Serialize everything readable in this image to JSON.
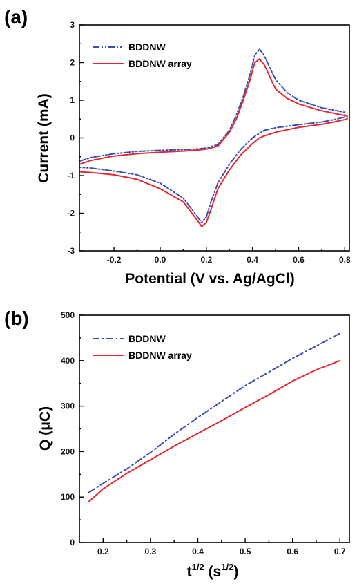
{
  "chart_data": [
    {
      "panel": "(a)",
      "type": "line",
      "xlabel": "Potential (V vs. Ag/AgCl)",
      "ylabel": "Current (mA)",
      "xlim": [
        -0.35,
        0.82
      ],
      "ylim": [
        -3,
        3
      ],
      "xticks": [
        -0.2,
        0.0,
        0.2,
        0.4,
        0.6,
        0.8
      ],
      "xtick_labels": [
        "-0.2",
        "0.0",
        "0.2",
        "0.4",
        "0.6",
        "0.8"
      ],
      "yticks": [
        -3,
        -2,
        -1,
        0,
        1,
        2,
        3
      ],
      "ytick_labels": [
        "-3",
        "-2",
        "-1",
        "0",
        "1",
        "2",
        "3"
      ],
      "grid": false,
      "legend_position": "top-left",
      "series": [
        {
          "name": "BDDNW",
          "color": "#3a4fb0",
          "dash": "dash-dot-dot",
          "x": [
            -0.35,
            -0.3,
            -0.2,
            -0.1,
            0.0,
            0.1,
            0.15,
            0.2,
            0.25,
            0.3,
            0.33,
            0.36,
            0.39,
            0.41,
            0.43,
            0.45,
            0.48,
            0.5,
            0.55,
            0.6,
            0.7,
            0.8,
            0.8,
            0.75,
            0.7,
            0.6,
            0.5,
            0.45,
            0.4,
            0.35,
            0.3,
            0.25,
            0.22,
            0.2,
            0.18,
            0.15,
            0.1,
            0.0,
            -0.1,
            -0.2,
            -0.3,
            -0.35
          ],
          "y": [
            -0.62,
            -0.52,
            -0.42,
            -0.36,
            -0.33,
            -0.31,
            -0.3,
            -0.27,
            -0.18,
            0.2,
            0.6,
            1.1,
            1.7,
            2.2,
            2.35,
            2.2,
            1.8,
            1.55,
            1.2,
            1.0,
            0.8,
            0.68,
            0.55,
            0.48,
            0.42,
            0.35,
            0.27,
            0.2,
            0.0,
            -0.3,
            -0.7,
            -1.2,
            -1.7,
            -2.1,
            -2.25,
            -2.0,
            -1.6,
            -1.2,
            -0.98,
            -0.88,
            -0.8,
            -0.78
          ]
        },
        {
          "name": "BDDNW array",
          "color": "#e8262f",
          "dash": "solid",
          "x": [
            -0.35,
            -0.3,
            -0.2,
            -0.1,
            0.0,
            0.1,
            0.15,
            0.2,
            0.25,
            0.3,
            0.33,
            0.36,
            0.39,
            0.41,
            0.43,
            0.45,
            0.47,
            0.48,
            0.5,
            0.55,
            0.6,
            0.7,
            0.81,
            0.81,
            0.75,
            0.7,
            0.6,
            0.5,
            0.45,
            0.43,
            0.4,
            0.35,
            0.3,
            0.25,
            0.22,
            0.2,
            0.18,
            0.15,
            0.1,
            0.0,
            -0.1,
            -0.2,
            -0.3,
            -0.35
          ],
          "y": [
            -0.7,
            -0.6,
            -0.48,
            -0.42,
            -0.38,
            -0.35,
            -0.33,
            -0.3,
            -0.22,
            0.15,
            0.5,
            1.0,
            1.55,
            2.0,
            2.1,
            1.95,
            1.7,
            1.55,
            1.3,
            1.05,
            0.9,
            0.72,
            0.58,
            0.5,
            0.42,
            0.36,
            0.28,
            0.15,
            0.05,
            0.0,
            -0.15,
            -0.45,
            -0.85,
            -1.35,
            -1.9,
            -2.25,
            -2.35,
            -2.1,
            -1.7,
            -1.35,
            -1.1,
            -0.98,
            -0.92,
            -0.9
          ]
        }
      ]
    },
    {
      "panel": "(b)",
      "type": "line",
      "xlabel_main": "t",
      "xlabel_sup1": "1/2",
      "xlabel_mid": " (s",
      "xlabel_sup2": "1/2",
      "xlabel_end": ")",
      "ylabel": "Q (μC)",
      "xlim": [
        0.15,
        0.72
      ],
      "ylim": [
        0,
        500
      ],
      "xticks": [
        0.2,
        0.3,
        0.4,
        0.5,
        0.6,
        0.7
      ],
      "xtick_labels": [
        "0.2",
        "0.3",
        "0.4",
        "0.5",
        "0.6",
        "0.7"
      ],
      "yticks": [
        0,
        100,
        200,
        300,
        400,
        500
      ],
      "ytick_labels": [
        "0",
        "100",
        "200",
        "300",
        "400",
        "500"
      ],
      "grid": false,
      "legend_position": "top-left",
      "series": [
        {
          "name": "BDDNW",
          "color": "#3a4fb0",
          "dash": "dash-dot",
          "x": [
            0.17,
            0.2,
            0.25,
            0.3,
            0.35,
            0.4,
            0.45,
            0.5,
            0.55,
            0.6,
            0.65,
            0.7
          ],
          "y": [
            110,
            130,
            162,
            198,
            238,
            275,
            310,
            345,
            375,
            405,
            432,
            460
          ]
        },
        {
          "name": "BDDNW array",
          "color": "#e8262f",
          "dash": "solid",
          "x": [
            0.17,
            0.2,
            0.25,
            0.3,
            0.35,
            0.4,
            0.45,
            0.5,
            0.55,
            0.6,
            0.65,
            0.7
          ],
          "y": [
            90,
            118,
            152,
            182,
            212,
            240,
            268,
            297,
            325,
            355,
            380,
            400
          ]
        }
      ]
    }
  ]
}
